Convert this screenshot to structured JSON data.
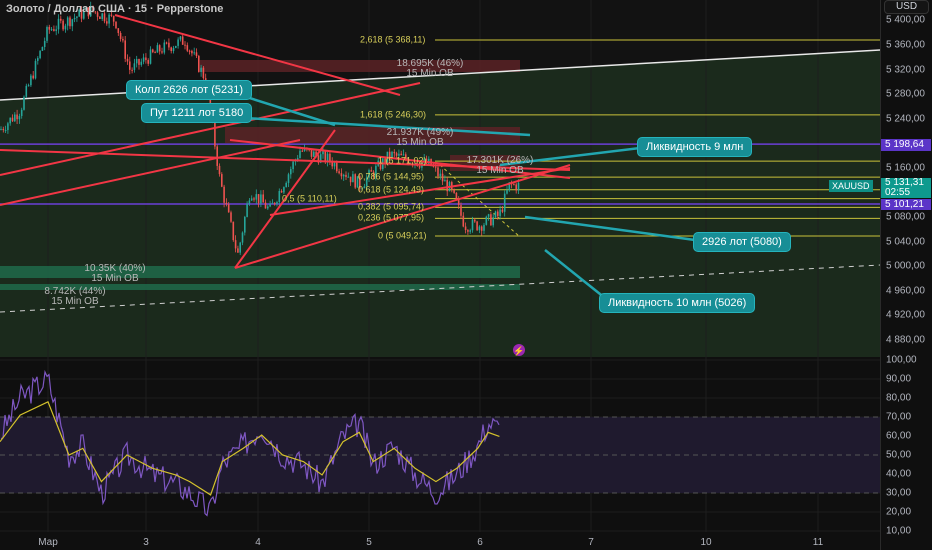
{
  "header": {
    "title": "Золото / Доллар США · 15 · Pepperstone",
    "currency": "USD"
  },
  "colors": {
    "bull": "#26a69a",
    "bear": "#ef5350",
    "fib": "#c9c13a",
    "purple": "#6b3fd6",
    "cyan": "#22a6b0",
    "trend_red": "#f23645",
    "rsi": "#7e57c2",
    "rsi_ma": "#d4c22c"
  },
  "chart_data": [
    {
      "type": "candlestick",
      "title": "Золото / Доллар США · 15 · Pepperstone",
      "ylim": [
        4860,
        5410
      ],
      "y_ticks": [
        "5 400,00",
        "5 360,00",
        "5 320,00",
        "5 280,00",
        "5 240,00",
        "5 160,00",
        "5 080,00",
        "5 040,00",
        "5 000,00",
        "4 960,00",
        "4 920,00",
        "4 880,00"
      ],
      "y_tick_values": [
        5400,
        5360,
        5320,
        5280,
        5240,
        5160,
        5080,
        5040,
        5000,
        4960,
        4920,
        4880
      ],
      "x_ticks": [
        "Мар",
        "3",
        "4",
        "5",
        "6",
        "7",
        "10",
        "11"
      ],
      "x_tick_days": [
        2,
        3,
        4,
        5,
        6,
        7,
        10,
        11
      ],
      "price_path": [
        [
          "03-01 13:40",
          5222
        ],
        [
          "03-01 18:00",
          5254
        ],
        [
          "03-02 00:00",
          5384
        ],
        [
          "03-02 09:00",
          5417
        ],
        [
          "03-02 14:30",
          5400
        ],
        [
          "03-02 17:40",
          5319
        ],
        [
          "03-03 00:00",
          5352
        ],
        [
          "03-03 05:30",
          5368
        ],
        [
          "03-03 10:00",
          5303
        ],
        [
          "03-03 13:00",
          5140
        ],
        [
          "03-03 16:50",
          5018
        ],
        [
          "03-03 19:30",
          5124
        ],
        [
          "03-03 23:45",
          5091
        ],
        [
          "03-04 06:15",
          5189
        ],
        [
          "03-04 12:40",
          5173
        ],
        [
          "03-04 19:10",
          5132
        ],
        [
          "03-05 01:40",
          5181
        ],
        [
          "03-05 10:20",
          5165
        ],
        [
          "03-05 14:40",
          5124
        ],
        [
          "03-05 17:45",
          5067
        ],
        [
          "03-05 20:55",
          5067
        ],
        [
          "03-06 01:10",
          5083
        ],
        [
          "03-06 03:20",
          5132
        ],
        [
          "03-06 05:30",
          5131
        ]
      ],
      "last_price": {
        "symbol": "XAUUSD",
        "value": "5 131,31",
        "countdown": "02:55"
      },
      "level_tags": [
        "5 198,64",
        "5 101,21"
      ],
      "fib_levels": [
        {
          "label": "2,618 (5 368,11)",
          "value": 5368.11
        },
        {
          "label": "1,618 (5 246,30)",
          "value": 5246.3
        },
        {
          "label": "1 (5 171,02)",
          "value": 5171.02
        },
        {
          "label": "0,786 (5 144,95)",
          "value": 5144.95
        },
        {
          "label": "0,618 (5 124,49)",
          "value": 5124.49
        },
        {
          "label": "0,5 (5 110,11)",
          "value": 5110.11
        },
        {
          "label": "0,382 (5 095,74)",
          "value": 5095.74
        },
        {
          "label": "0,236 (5 077,95)",
          "value": 5077.95
        },
        {
          "label": "0 (5 049,21)",
          "value": 5049.21
        }
      ],
      "order_blocks": [
        {
          "size": "18.695K (46%)",
          "label": "15 Min OB",
          "kind": "bear"
        },
        {
          "size": "21.937K (49%)",
          "label": "15 Min OB",
          "kind": "bear"
        },
        {
          "size": "17.301K (26%)",
          "label": "15 Min OB",
          "kind": "bear"
        },
        {
          "size": "10.35K (40%)",
          "label": "15 Min OB",
          "kind": "bull"
        },
        {
          "size": "8.742K (44%)",
          "label": "15 Min OB",
          "kind": "bull"
        }
      ],
      "callouts": [
        "Колл 2626 лот (5231)",
        "Пут 1211 лот 5180",
        "Ликвидность 9 млн",
        "2926 лот (5080)",
        "Ликвидность 10 млн (5026)"
      ]
    },
    {
      "type": "line",
      "ylim": [
        10,
        100
      ],
      "y_ticks": [
        "100,00",
        "90,00",
        "80,00",
        "70,00",
        "60,00",
        "50,00",
        "40,00",
        "30,00",
        "20,00",
        "10,00"
      ],
      "y_tick_values": [
        100,
        90,
        80,
        70,
        60,
        50,
        40,
        30,
        20,
        10
      ],
      "band": [
        30,
        70
      ],
      "rsi_path": [
        [
          "03-01 13:40",
          60
        ],
        [
          "03-01 18:00",
          80
        ],
        [
          "03-02 00:00",
          90
        ],
        [
          "03-02 04:30",
          50
        ],
        [
          "03-02 07:30",
          55
        ],
        [
          "03-02 11:30",
          30
        ],
        [
          "03-02 17:00",
          50
        ],
        [
          "03-02 22:30",
          40
        ],
        [
          "03-03 03:30",
          35
        ],
        [
          "03-03 06:30",
          30
        ],
        [
          "03-03 11:00",
          20
        ],
        [
          "03-03 13:30",
          45
        ],
        [
          "03-03 18:00",
          55
        ],
        [
          "03-03 22:00",
          65
        ],
        [
          "03-04 02:30",
          50
        ],
        [
          "03-04 07:00",
          45
        ],
        [
          "03-04 11:00",
          35
        ],
        [
          "03-04 15:30",
          60
        ],
        [
          "03-04 19:00",
          67
        ],
        [
          "03-04 22:00",
          45
        ],
        [
          "03-05 02:30",
          55
        ],
        [
          "03-05 07:00",
          40
        ],
        [
          "03-05 11:30",
          30
        ],
        [
          "03-05 16:00",
          40
        ],
        [
          "03-05 20:30",
          55
        ],
        [
          "03-05 22:45",
          67
        ],
        [
          "03-06 01:10",
          64
        ]
      ]
    }
  ]
}
